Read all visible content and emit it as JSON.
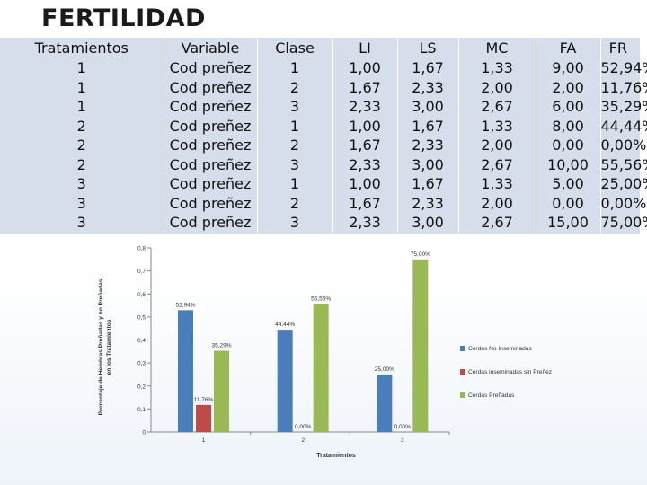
{
  "title": "FERTILIDAD",
  "table": {
    "headers": [
      "Tratamientos",
      "Variable",
      "Clase",
      "LI",
      "LS",
      "MC",
      "FA",
      "FR"
    ],
    "rows": [
      [
        "1",
        "Cod preñez",
        "1",
        "1,00",
        "1,67",
        "1,33",
        "9,00",
        "52,94%"
      ],
      [
        "1",
        "Cod preñez",
        "2",
        "1,67",
        "2,33",
        "2,00",
        "2,00",
        "11,76%"
      ],
      [
        "1",
        "Cod preñez",
        "3",
        "2,33",
        "3,00",
        "2,67",
        "6,00",
        "35,29%"
      ],
      [
        "2",
        "Cod preñez",
        "1",
        "1,00",
        "1,67",
        "1,33",
        "8,00",
        "44,44%"
      ],
      [
        "2",
        "Cod preñez",
        "2",
        "1,67",
        "2,33",
        "2,00",
        "0,00",
        "0,00%"
      ],
      [
        "2",
        "Cod preñez",
        "3",
        "2,33",
        "3,00",
        "2,67",
        "10,00",
        "55,56%"
      ],
      [
        "3",
        "Cod preñez",
        "1",
        "1,00",
        "1,67",
        "1,33",
        "5,00",
        "25,00%"
      ],
      [
        "3",
        "Cod preñez",
        "2",
        "1,67",
        "2,33",
        "2,00",
        "0,00",
        "0,00%"
      ],
      [
        "3",
        "Cod preñez",
        "3",
        "2,33",
        "3,00",
        "2,67",
        "15,00",
        "75,00%"
      ]
    ]
  },
  "chart_data": {
    "type": "bar",
    "title": "",
    "xlabel": "Tratamientos",
    "ylabel": "Porcentaje de Hembras Preñadas y no Preñadas en los Tratamientos",
    "categories": [
      "1",
      "2",
      "3"
    ],
    "ylim": [
      0,
      0.8
    ],
    "yticks": [
      "0",
      "0,1",
      "0,2",
      "0,3",
      "0,4",
      "0,5",
      "0,6",
      "0,7",
      "0,8"
    ],
    "series": [
      {
        "name": "Cerdas No Inseminadas",
        "values": [
          0.5294,
          0.4444,
          0.25
        ],
        "labels": [
          "52,94%",
          "44,44%",
          "25,00%"
        ],
        "color": "#4a7ebb"
      },
      {
        "name": "Cerdas inseminadas sin Preñez",
        "values": [
          0.1176,
          0,
          0
        ],
        "labels": [
          "11,76%",
          "0,00%",
          "0,00%"
        ],
        "color": "#be4b48"
      },
      {
        "name": "Cerdas Preñadas",
        "values": [
          0.3529,
          0.5556,
          0.75
        ],
        "labels": [
          "35,29%",
          "55,56%",
          "75,00%"
        ],
        "color": "#98b954"
      }
    ],
    "legend": "right"
  }
}
